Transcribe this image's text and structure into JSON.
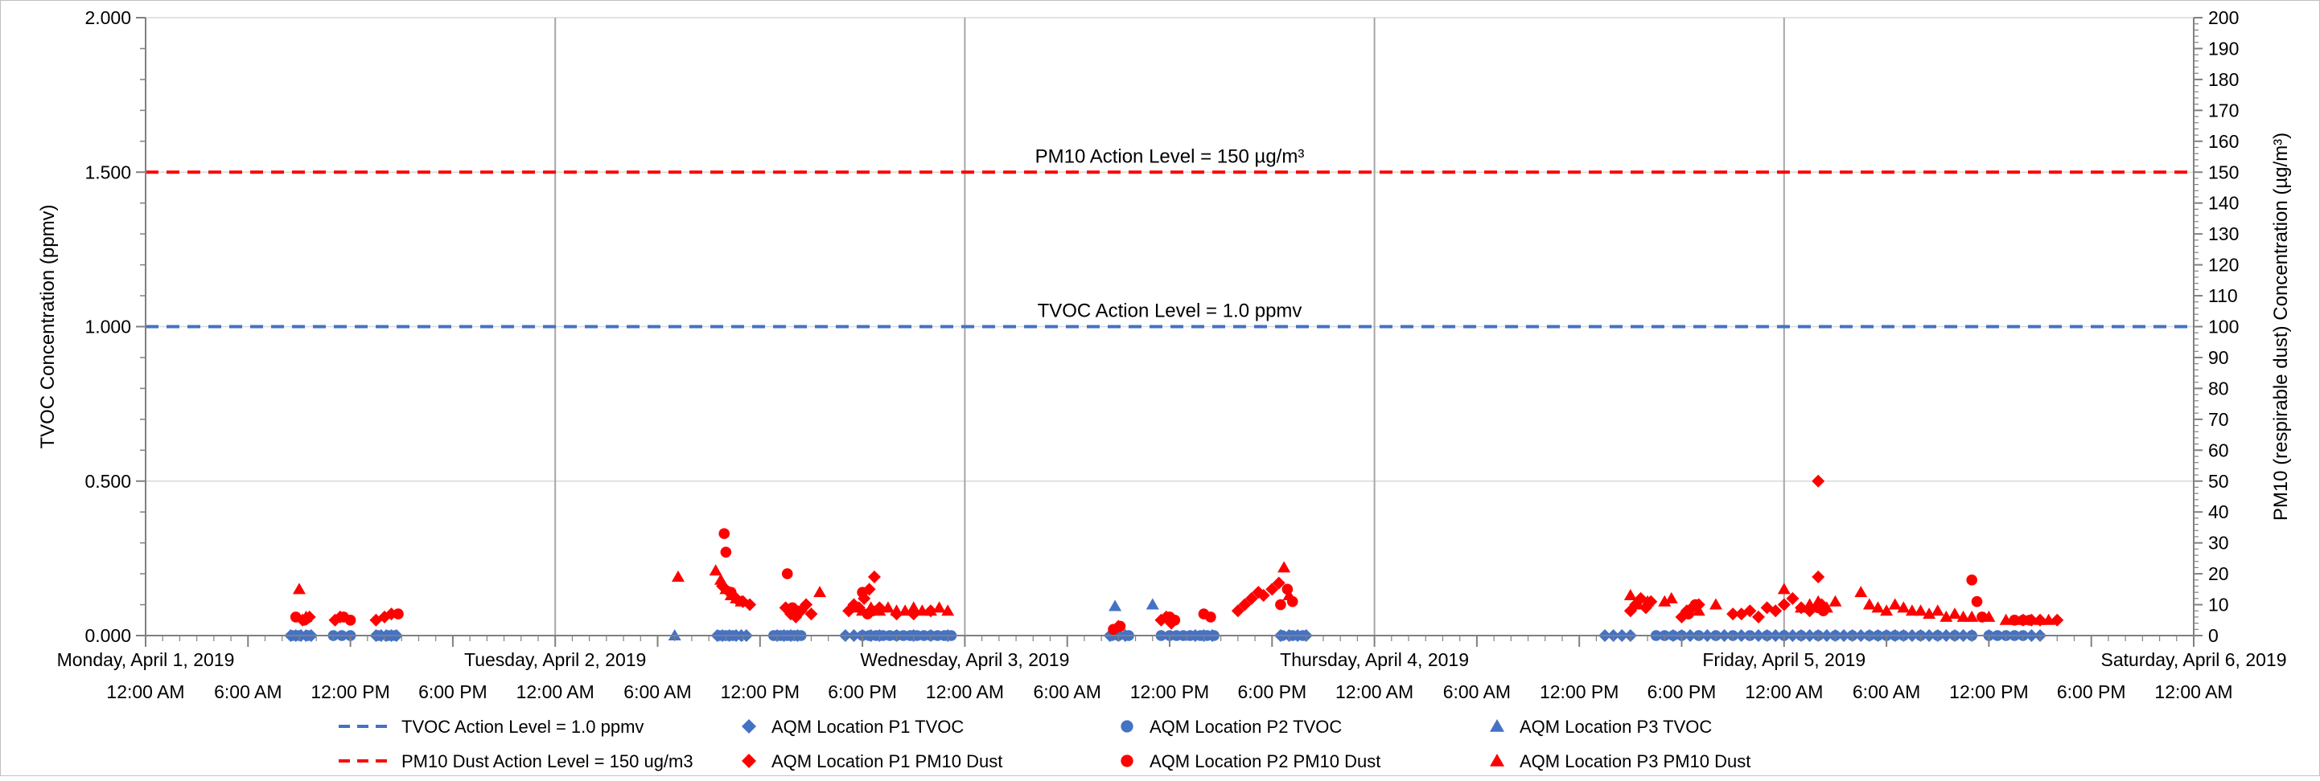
{
  "chart_data": {
    "type": "scatter",
    "ylabel_left": "TVOC Concentration (ppmv)",
    "ylabel_right": "PM10 (respirable dust) Concentration (µg/m³)",
    "ylim_left": [
      0,
      2.0
    ],
    "ylim_right": [
      0,
      200
    ],
    "left_ticks": [
      "0.000",
      "0.500",
      "1.000",
      "1.500",
      "2.000"
    ],
    "right_ticks": [
      "0",
      "10",
      "20",
      "30",
      "40",
      "50",
      "60",
      "70",
      "80",
      "90",
      "100",
      "110",
      "120",
      "130",
      "140",
      "150",
      "160",
      "170",
      "180",
      "190",
      "200"
    ],
    "x_range_hours": [
      0,
      120
    ],
    "day_labels": [
      "Monday, April 1, 2019",
      "Tuesday, April 2, 2019",
      "Wednesday, April 3, 2019",
      "Thursday, April 4, 2019",
      "Friday, April 5, 2019",
      "Saturday, April 6, 2019"
    ],
    "time_labels": [
      "12:00 AM",
      "6:00 AM",
      "12:00 PM",
      "6:00 PM",
      "12:00 AM",
      "6:00 AM",
      "12:00 PM",
      "6:00 PM",
      "12:00 AM",
      "6:00 AM",
      "12:00 PM",
      "6:00 PM",
      "12:00 AM",
      "6:00 AM",
      "12:00 PM",
      "6:00 PM",
      "12:00 AM",
      "6:00 AM",
      "12:00 PM",
      "6:00 PM",
      "12:00 AM"
    ],
    "grid": "vertical lines at day boundaries, horizontal lines at major left ticks",
    "legend_position": "bottom",
    "reference_lines": [
      {
        "name": "TVOC Action Level = 1.0 ppmv",
        "axis": "left",
        "value": 1.0,
        "color": "#4472c4",
        "label": "TVOC Action Level = 1.0 ppmv"
      },
      {
        "name": "PM10 Dust Action Level = 150 ug/m3",
        "axis": "right",
        "value": 150,
        "color": "#ff0000",
        "label": "PM10 Action Level = 150 µg/m³"
      }
    ],
    "series": [
      {
        "name": "AQM Location P1 TVOC",
        "axis": "left",
        "marker": "diamond",
        "color": "#4472c4",
        "x": [
          8.5,
          8.8,
          9.1,
          9.4,
          9.7,
          13.5,
          13.8,
          14.1,
          14.4,
          14.7,
          33.5,
          33.8,
          34.2,
          34.6,
          34.9,
          35.2,
          37.0,
          37.4,
          37.8,
          38.2,
          41.0,
          41.5,
          42.0,
          42.5,
          43.0,
          44.0,
          45.0,
          46.0,
          47.0,
          56.5,
          57.0,
          57.4,
          61.5,
          62.0,
          62.5,
          66.5,
          67.0,
          67.5,
          68.0,
          85.5,
          86.0,
          86.5,
          87.0,
          89.5,
          90.0,
          90.5,
          91.5,
          92.5,
          93.5,
          94.5,
          95.0,
          95.5,
          96.0,
          96.5,
          97.0,
          97.5,
          98.0,
          98.5,
          99.0,
          99.5,
          100.0,
          100.5,
          101.0,
          101.5,
          102.0,
          102.5,
          103.0,
          103.5,
          104.0,
          104.5,
          105.0,
          105.5,
          106.0,
          106.5,
          107.0,
          108.0,
          110.5,
          111.0
        ],
        "y": [
          0,
          0,
          0,
          0,
          0,
          0,
          0,
          0,
          0,
          0,
          0,
          0,
          0,
          0,
          0,
          0,
          0,
          0,
          0,
          0,
          0,
          0,
          0,
          0,
          0,
          0,
          0,
          0,
          0,
          0,
          0,
          0,
          0,
          0,
          0,
          0,
          0,
          0,
          0,
          0,
          0,
          0,
          0,
          0,
          0,
          0,
          0,
          0,
          0,
          0,
          0,
          0,
          0,
          0,
          0,
          0,
          0,
          0,
          0,
          0,
          0,
          0,
          0,
          0,
          0,
          0,
          0,
          0,
          0,
          0,
          0,
          0,
          0,
          0,
          0,
          0,
          0,
          0
        ]
      },
      {
        "name": "AQM Location P2 TVOC",
        "axis": "left",
        "marker": "circle",
        "color": "#4472c4",
        "x": [
          8.6,
          9.0,
          9.5,
          11.0,
          11.5,
          12.0,
          13.6,
          14.2,
          14.6,
          33.6,
          34.0,
          34.4,
          36.8,
          37.2,
          37.6,
          38.0,
          38.4,
          42.0,
          42.4,
          42.8,
          43.2,
          43.6,
          44.0,
          44.4,
          44.8,
          45.2,
          45.6,
          46.0,
          46.4,
          46.8,
          47.2,
          56.6,
          57.0,
          57.6,
          59.5,
          60.0,
          60.4,
          60.8,
          61.2,
          61.8,
          62.2,
          62.6,
          66.6,
          67.2,
          67.8,
          88.5,
          89.0,
          89.5,
          90.0,
          91.0,
          92.0,
          93.0,
          94.0,
          95.0,
          96.0,
          97.0,
          98.0,
          99.0,
          100.0,
          101.0,
          101.5,
          102.0,
          102.5,
          103.0,
          104.0,
          105.0,
          106.0,
          107.0,
          108.0,
          108.5,
          109.0,
          109.5,
          110.0
        ],
        "y": [
          0,
          0,
          0,
          0,
          0,
          0,
          0,
          0,
          0,
          0,
          0,
          0,
          0,
          0,
          0,
          0,
          0,
          0,
          0,
          0,
          0,
          0,
          0,
          0,
          0,
          0,
          0,
          0,
          0,
          0,
          0,
          0,
          0,
          0,
          0,
          0,
          0,
          0,
          0,
          0,
          0,
          0,
          0,
          0,
          0,
          0,
          0,
          0,
          0,
          0,
          0,
          0,
          0,
          0,
          0,
          0,
          0,
          0,
          0,
          0,
          0,
          0,
          0,
          0,
          0,
          0,
          0,
          0,
          0,
          0,
          0,
          0,
          0
        ]
      },
      {
        "name": "AQM Location P3 TVOC",
        "axis": "left",
        "marker": "triangle",
        "color": "#4472c4",
        "x": [
          31.0,
          56.8,
          59.0
        ],
        "y": [
          0,
          0.095,
          0.1
        ]
      },
      {
        "name": "AQM Location P1 PM10 Dust",
        "axis": "right",
        "marker": "diamond",
        "color": "#ff0000",
        "x": [
          9.2,
          9.6,
          11.1,
          11.4,
          13.5,
          14.0,
          14.4,
          33.8,
          34.2,
          34.6,
          35.0,
          35.4,
          37.5,
          37.8,
          38.1,
          38.4,
          38.7,
          39.0,
          41.2,
          41.5,
          41.8,
          42.1,
          42.4,
          42.7,
          43.0,
          44.0,
          45.0,
          46.0,
          57.0,
          59.5,
          59.8,
          60.1,
          64.0,
          64.4,
          64.8,
          65.2,
          65.5,
          66.0,
          66.4,
          87.0,
          87.3,
          87.6,
          87.9,
          88.2,
          90.0,
          90.3,
          90.6,
          91.0,
          93.0,
          93.5,
          94.0,
          94.5,
          95.0,
          95.5,
          96.0,
          96.5,
          97.0,
          97.5,
          98.0,
          98.0,
          98.2,
          110.0,
          110.5,
          111.0,
          112.0
        ],
        "y": [
          5,
          6,
          5,
          6,
          5,
          6,
          7,
          16,
          14,
          12,
          11,
          10,
          9,
          7,
          6,
          8,
          10,
          7,
          8,
          10,
          9,
          12,
          15,
          19,
          9,
          7,
          7,
          8,
          3,
          5,
          6,
          4,
          8,
          10,
          12,
          14,
          13,
          15,
          17,
          8,
          10,
          12,
          9,
          11,
          6,
          8,
          9,
          10,
          7,
          7,
          8,
          6,
          9,
          8,
          10,
          12,
          9,
          8,
          50,
          19,
          10,
          5,
          5,
          5,
          5
        ]
      },
      {
        "name": "AQM Location P2 PM10 Dust",
        "axis": "right",
        "marker": "circle",
        "color": "#ff0000",
        "x": [
          8.8,
          9.3,
          11.6,
          12.0,
          14.8,
          33.9,
          34.0,
          34.3,
          37.6,
          37.9,
          38.2,
          42.0,
          42.3,
          42.6,
          56.7,
          57.1,
          60.0,
          60.3,
          62.0,
          62.4,
          66.5,
          66.9,
          67.2,
          90.4,
          90.8,
          98.0,
          98.3,
          107.0,
          107.3,
          107.6,
          109.5,
          110.0,
          110.4
        ],
        "y": [
          6,
          5,
          6,
          5,
          7,
          33,
          27,
          14,
          20,
          9,
          8,
          14,
          7,
          8,
          2,
          3,
          6,
          5,
          7,
          6,
          10,
          15,
          11,
          7,
          10,
          9,
          8,
          18,
          11,
          6,
          5,
          5,
          5
        ]
      },
      {
        "name": "AQM Location P3 PM10 Dust",
        "axis": "right",
        "marker": "triangle",
        "color": "#ff0000",
        "x": [
          9.0,
          9.4,
          31.2,
          33.4,
          33.7,
          34.0,
          34.3,
          34.6,
          34.9,
          39.5,
          41.7,
          42.0,
          42.5,
          43.0,
          43.5,
          44.0,
          44.5,
          45.0,
          45.5,
          46.0,
          46.5,
          47.0,
          66.7,
          67.0,
          87.0,
          87.4,
          88.0,
          89.0,
          89.4,
          91.0,
          92.0,
          96.0,
          97.0,
          97.5,
          98.0,
          98.5,
          99.0,
          100.5,
          101.0,
          101.5,
          102.0,
          102.5,
          103.0,
          103.5,
          104.0,
          104.5,
          105.0,
          105.5,
          106.0,
          106.5,
          107.0,
          108.0,
          109.0,
          110.0,
          111.0,
          111.5
        ],
        "y": [
          15,
          6,
          19,
          21,
          18,
          15,
          13,
          12,
          11,
          14,
          9,
          8,
          9,
          8,
          9,
          8,
          8,
          9,
          8,
          8,
          9,
          8,
          22,
          13,
          13,
          10,
          11,
          11,
          12,
          8,
          10,
          15,
          9,
          10,
          11,
          9,
          11,
          14,
          10,
          9,
          8,
          10,
          9,
          8,
          8,
          7,
          8,
          6,
          7,
          6,
          6,
          6,
          5,
          5,
          5,
          5
        ]
      }
    ]
  },
  "legend": {
    "items": [
      {
        "label": "TVOC Action Level = 1.0 ppmv",
        "kind": "dash",
        "color": "#4472c4"
      },
      {
        "label": "AQM Location P1 TVOC",
        "kind": "diamond",
        "color": "#4472c4"
      },
      {
        "label": "AQM Location P2 TVOC",
        "kind": "circle",
        "color": "#4472c4"
      },
      {
        "label": "AQM Location P3 TVOC",
        "kind": "triangle",
        "color": "#4472c4"
      },
      {
        "label": "PM10 Dust Action Level = 150 ug/m3",
        "kind": "dash",
        "color": "#ff0000"
      },
      {
        "label": "AQM Location P1 PM10 Dust",
        "kind": "diamond",
        "color": "#ff0000"
      },
      {
        "label": "AQM Location P2 PM10 Dust",
        "kind": "circle",
        "color": "#ff0000"
      },
      {
        "label": "AQM Location P3 PM10 Dust",
        "kind": "triangle",
        "color": "#ff0000"
      }
    ]
  }
}
